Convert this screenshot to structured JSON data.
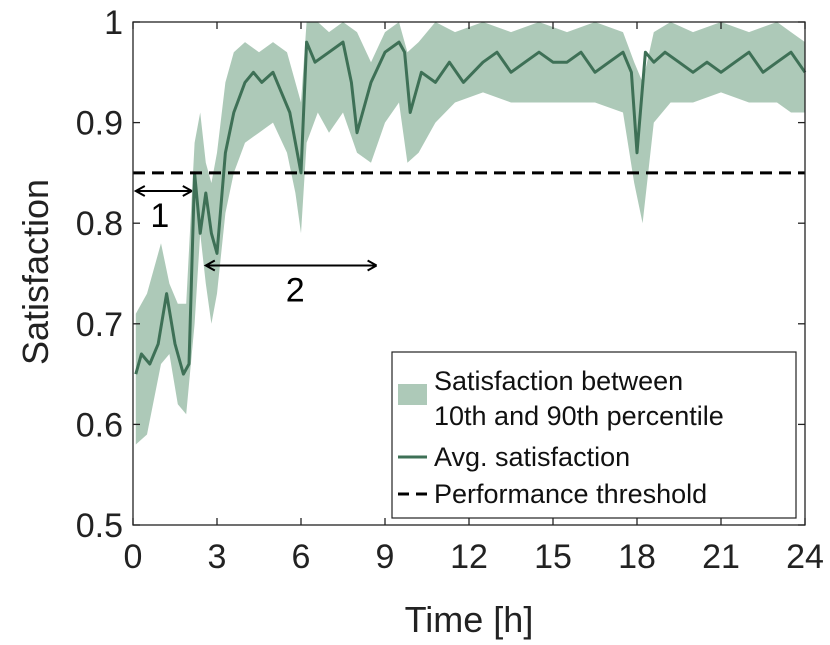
{
  "chart_data": {
    "type": "line",
    "title": "",
    "xlabel": "Time [h]",
    "ylabel": "Satisfaction",
    "xlim": [
      0,
      24
    ],
    "ylim": [
      0.5,
      1
    ],
    "xticks": [
      0,
      3,
      6,
      9,
      12,
      15,
      18,
      21,
      24
    ],
    "xtick_labels": [
      "0",
      "3",
      "6",
      "9",
      "12",
      "15",
      "18",
      "21",
      "24"
    ],
    "yticks": [
      0.5,
      0.6,
      0.7,
      0.8,
      0.9,
      1
    ],
    "ytick_labels": [
      "0.5",
      "0.6",
      "0.7",
      "0.8",
      "0.9",
      "1"
    ],
    "grid": false,
    "colors": {
      "band": "#adc9b8",
      "line": "#3e7056",
      "threshold": "#000000",
      "axis": "#222222"
    },
    "series": [
      {
        "name": "Satisfaction between 10th and 90th percentile",
        "type": "band",
        "x": [
          0.1,
          0.5,
          1.0,
          1.3,
          1.6,
          1.9,
          2.2,
          2.4,
          2.6,
          2.8,
          3.0,
          3.3,
          3.6,
          4.0,
          4.5,
          5.0,
          5.5,
          5.8,
          6.0,
          6.2,
          6.6,
          7.0,
          7.5,
          8.0,
          8.5,
          9.0,
          9.5,
          9.8,
          10.2,
          10.8,
          11.5,
          12.5,
          13.5,
          14.5,
          15.5,
          16.5,
          17.5,
          17.9,
          18.2,
          18.6,
          19.2,
          20.0,
          21.0,
          22.0,
          23.0,
          23.5,
          24.0
        ],
        "lower": [
          0.58,
          0.59,
          0.66,
          0.67,
          0.62,
          0.61,
          0.7,
          0.79,
          0.74,
          0.7,
          0.73,
          0.81,
          0.85,
          0.88,
          0.89,
          0.9,
          0.87,
          0.83,
          0.79,
          0.88,
          0.91,
          0.89,
          0.91,
          0.87,
          0.86,
          0.9,
          0.92,
          0.86,
          0.87,
          0.9,
          0.92,
          0.93,
          0.92,
          0.92,
          0.92,
          0.92,
          0.91,
          0.84,
          0.8,
          0.9,
          0.92,
          0.92,
          0.93,
          0.92,
          0.92,
          0.91,
          0.91
        ],
        "upper": [
          0.71,
          0.73,
          0.78,
          0.74,
          0.72,
          0.72,
          0.88,
          0.91,
          0.86,
          0.84,
          0.87,
          0.94,
          0.97,
          0.98,
          0.97,
          0.98,
          0.97,
          0.94,
          0.92,
          1.0,
          1.0,
          0.99,
          1.0,
          0.99,
          0.96,
          0.99,
          1.0,
          0.97,
          0.98,
          1.0,
          0.99,
          1.0,
          0.99,
          1.0,
          0.99,
          1.0,
          0.99,
          0.96,
          0.94,
          0.99,
          1.0,
          0.99,
          1.0,
          0.99,
          1.0,
          0.99,
          0.98
        ]
      },
      {
        "name": "Avg. satisfaction",
        "type": "line",
        "x": [
          0.1,
          0.3,
          0.6,
          0.9,
          1.2,
          1.5,
          1.8,
          2.0,
          2.2,
          2.4,
          2.6,
          2.8,
          3.0,
          3.3,
          3.6,
          4.0,
          4.3,
          4.6,
          5.0,
          5.3,
          5.6,
          5.8,
          6.0,
          6.2,
          6.5,
          7.0,
          7.5,
          7.8,
          8.0,
          8.5,
          9.0,
          9.5,
          9.7,
          9.9,
          10.3,
          10.8,
          11.3,
          11.8,
          12.5,
          13.0,
          13.5,
          14.0,
          14.5,
          15.0,
          15.5,
          16.0,
          16.5,
          17.0,
          17.5,
          17.8,
          18.0,
          18.3,
          18.6,
          19.0,
          19.5,
          20.0,
          20.5,
          21.0,
          21.5,
          22.0,
          22.5,
          23.0,
          23.5,
          24.0
        ],
        "values": [
          0.65,
          0.67,
          0.66,
          0.68,
          0.73,
          0.68,
          0.65,
          0.66,
          0.85,
          0.79,
          0.83,
          0.79,
          0.77,
          0.87,
          0.91,
          0.94,
          0.95,
          0.94,
          0.95,
          0.93,
          0.91,
          0.88,
          0.85,
          0.98,
          0.96,
          0.97,
          0.98,
          0.94,
          0.89,
          0.94,
          0.97,
          0.98,
          0.97,
          0.91,
          0.95,
          0.94,
          0.96,
          0.94,
          0.96,
          0.97,
          0.95,
          0.96,
          0.97,
          0.96,
          0.96,
          0.97,
          0.95,
          0.96,
          0.97,
          0.95,
          0.87,
          0.97,
          0.96,
          0.97,
          0.96,
          0.95,
          0.96,
          0.95,
          0.96,
          0.97,
          0.95,
          0.96,
          0.97,
          0.95
        ]
      },
      {
        "name": "Performance threshold",
        "type": "hline",
        "value": 0.85
      }
    ],
    "annotations": [
      {
        "label": "1",
        "x_start": 0.1,
        "x_end": 2.1,
        "y": 0.832,
        "arrow": "double"
      },
      {
        "label": "2",
        "x_start": 2.6,
        "x_end": 8.7,
        "y": 0.758,
        "arrow": "double"
      }
    ],
    "legend": {
      "position": "bottom-right",
      "entries": [
        "Satisfaction between",
        "10th and 90th percentile",
        "Avg. satisfaction",
        "Performance threshold"
      ]
    }
  }
}
